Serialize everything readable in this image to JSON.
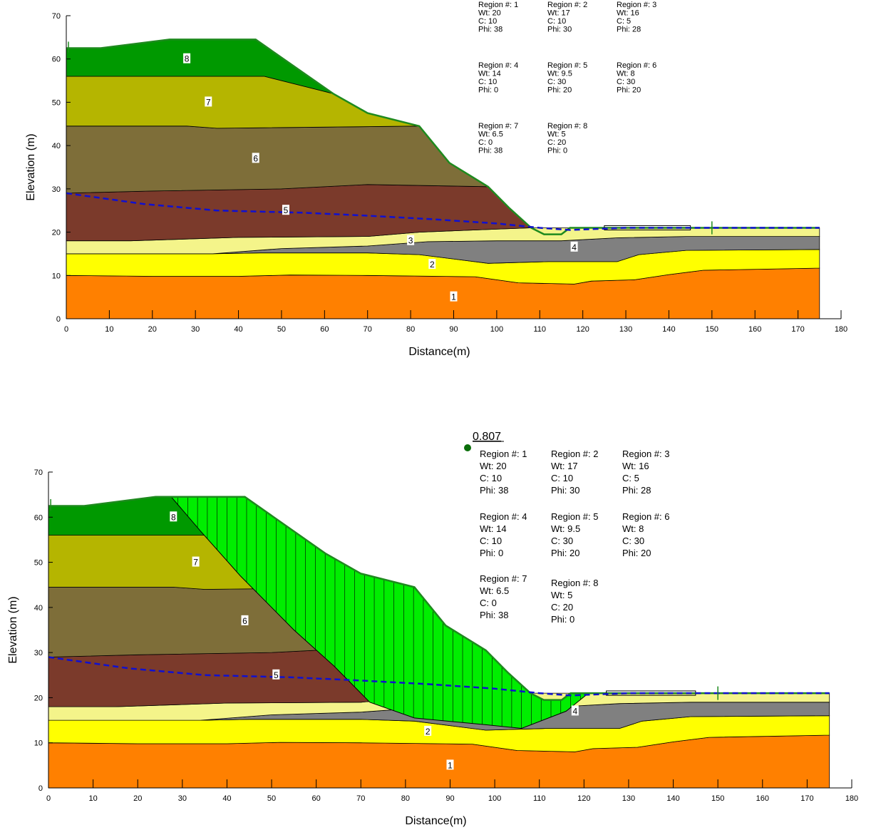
{
  "panels": [
    {
      "id": "top",
      "axes": {
        "xlabel": "Distance(m)",
        "ylabel": "Elevation (m)",
        "xlim": [
          0,
          180
        ],
        "ylim": [
          0,
          70
        ],
        "xticks": [
          0,
          10,
          20,
          30,
          40,
          50,
          60,
          70,
          80,
          90,
          100,
          110,
          120,
          130,
          140,
          150,
          160,
          170,
          180
        ],
        "yticks": [
          0,
          10,
          20,
          30,
          40,
          50,
          60,
          70
        ]
      },
      "region_labels": [
        {
          "text": "1",
          "x": 90,
          "y": 5
        },
        {
          "text": "2",
          "x": 85,
          "y": 12.5
        },
        {
          "text": "3",
          "x": 80,
          "y": 18
        },
        {
          "text": "4",
          "x": 118,
          "y": 16.5
        },
        {
          "text": "5",
          "x": 51,
          "y": 25
        },
        {
          "text": "6",
          "x": 44,
          "y": 37
        },
        {
          "text": "7",
          "x": 33,
          "y": 50
        },
        {
          "text": "8",
          "x": 28,
          "y": 60
        }
      ],
      "factor_of_safety": null
    },
    {
      "id": "bottom",
      "axes": {
        "xlabel": "Distance(m)",
        "ylabel": "Elevation (m)",
        "xlim": [
          0,
          180
        ],
        "ylim": [
          0,
          70
        ],
        "xticks": [
          0,
          10,
          20,
          30,
          40,
          50,
          60,
          70,
          80,
          90,
          100,
          110,
          120,
          130,
          140,
          150,
          160,
          170,
          180
        ],
        "yticks": [
          0,
          10,
          20,
          30,
          40,
          50,
          60,
          70
        ]
      },
      "region_labels": [
        {
          "text": "1",
          "x": 90,
          "y": 5
        },
        {
          "text": "2",
          "x": 85,
          "y": 12.5
        },
        {
          "text": "4",
          "x": 118,
          "y": 17
        },
        {
          "text": "5",
          "x": 51,
          "y": 25
        },
        {
          "text": "6",
          "x": 44,
          "y": 37
        },
        {
          "text": "7",
          "x": 33,
          "y": 50
        },
        {
          "text": "8",
          "x": 28,
          "y": 60
        }
      ],
      "factor_of_safety": "0.807"
    }
  ],
  "materials": [
    {
      "region": "Region  #: 1",
      "wt": "Wt: 20",
      "c": "C: 10",
      "phi": "Phi: 38"
    },
    {
      "region": "Region  #: 2",
      "wt": "Wt: 17",
      "c": "C: 10",
      "phi": "Phi: 30"
    },
    {
      "region": "Region  #: 3",
      "wt": "Wt: 16",
      "c": "C: 5",
      "phi": "Phi: 28"
    },
    {
      "region": "Region  #: 4",
      "wt": "Wt: 14",
      "c": "C: 10",
      "phi": "Phi: 0"
    },
    {
      "region": "Region  #: 5",
      "wt": "Wt: 9.5",
      "c": "C: 30",
      "phi": "Phi: 20"
    },
    {
      "region": "Region  #: 6",
      "wt": "Wt: 8",
      "c": "C: 30",
      "phi": "Phi: 20"
    },
    {
      "region": "Region  #: 7",
      "wt": "Wt: 6.5",
      "c": "C: 0",
      "phi": "Phi: 38"
    },
    {
      "region": "Region  #: 8",
      "wt": "Wt: 5",
      "c": "C: 20",
      "phi": "Phi: 0"
    }
  ],
  "geometry": {
    "surface": [
      [
        0,
        62.5
      ],
      [
        8,
        62.5
      ],
      [
        24,
        64.5
      ],
      [
        44,
        64.5
      ],
      [
        62,
        52
      ],
      [
        70,
        47.5
      ],
      [
        82,
        44.5
      ],
      [
        89,
        36
      ],
      [
        98,
        30.5
      ],
      [
        103,
        25.5
      ],
      [
        108,
        21
      ],
      [
        111,
        19.5
      ],
      [
        115,
        19.5
      ],
      [
        117,
        21
      ],
      [
        122,
        21
      ],
      [
        125,
        21
      ],
      [
        133,
        21
      ],
      [
        175,
        21
      ]
    ],
    "layers": [
      {
        "region": 1,
        "color": "#ff8000",
        "top": [
          [
            0,
            10
          ],
          [
            20,
            9.8
          ],
          [
            40,
            9.8
          ],
          [
            52,
            10.1
          ],
          [
            70,
            10
          ],
          [
            95,
            9.7
          ],
          [
            105,
            8.3
          ],
          [
            118,
            8
          ],
          [
            122,
            8.7
          ],
          [
            132,
            9
          ],
          [
            140,
            10.2
          ],
          [
            148,
            11.2
          ],
          [
            175,
            11.7
          ]
        ]
      },
      {
        "region": 2,
        "color": "#ffff00",
        "top": [
          [
            0,
            15
          ],
          [
            34,
            15
          ],
          [
            45,
            15.2
          ],
          [
            70,
            15.2
          ],
          [
            82,
            14.8
          ],
          [
            98,
            12.8
          ],
          [
            112,
            13.2
          ],
          [
            128,
            13.2
          ],
          [
            133,
            14.8
          ],
          [
            144,
            15.8
          ],
          [
            175,
            16
          ]
        ]
      },
      {
        "region": 4,
        "color": "#808080",
        "top": [
          [
            0,
            15
          ],
          [
            34,
            15
          ],
          [
            50,
            16.2
          ],
          [
            70,
            16.8
          ],
          [
            84,
            17.8
          ],
          [
            100,
            18
          ],
          [
            115,
            18
          ],
          [
            128,
            18.7
          ],
          [
            144,
            19
          ],
          [
            175,
            19
          ]
        ]
      },
      {
        "region": 3,
        "color": "#f4f48a",
        "top": [
          [
            0,
            18
          ],
          [
            15,
            18
          ],
          [
            40,
            18.8
          ],
          [
            70,
            19
          ],
          [
            82,
            20
          ],
          [
            95,
            20.5
          ],
          [
            108,
            21
          ],
          [
            175,
            21
          ]
        ]
      },
      {
        "region": 5,
        "color": "#7b3a2b",
        "top": [
          [
            0,
            29
          ],
          [
            20,
            29.5
          ],
          [
            50,
            30
          ],
          [
            70,
            31
          ],
          [
            98,
            30.5
          ],
          [
            103,
            25.5
          ],
          [
            108,
            21
          ],
          [
            0,
            21
          ]
        ]
      },
      {
        "region": 6,
        "color": "#7e6e39",
        "top": [
          [
            0,
            44.5
          ],
          [
            28,
            44.5
          ],
          [
            35,
            44
          ],
          [
            82,
            44.5
          ],
          [
            89,
            36
          ],
          [
            98,
            30.5
          ]
        ]
      },
      {
        "region": 7,
        "color": "#b5b500",
        "top": [
          [
            0,
            56
          ],
          [
            46,
            56
          ],
          [
            62,
            52
          ],
          [
            70,
            47.5
          ],
          [
            82,
            44.5
          ]
        ]
      },
      {
        "region": 8,
        "color": "#009900",
        "top": [
          [
            0,
            62.5
          ],
          [
            8,
            62.5
          ],
          [
            24,
            64.5
          ],
          [
            44,
            64.5
          ],
          [
            62,
            52
          ]
        ]
      }
    ],
    "water_table": [
      [
        0,
        29
      ],
      [
        18,
        26.5
      ],
      [
        35,
        25
      ],
      [
        55,
        24.5
      ],
      [
        70,
        23.8
      ],
      [
        85,
        23
      ],
      [
        100,
        22
      ],
      [
        110,
        21
      ],
      [
        117,
        20.5
      ],
      [
        130,
        21
      ],
      [
        175,
        21
      ]
    ],
    "slip_surface": [
      [
        27.5,
        64.5
      ],
      [
        34,
        57
      ],
      [
        43,
        47
      ],
      [
        55,
        35
      ],
      [
        64,
        27
      ],
      [
        72,
        19
      ],
      [
        82,
        15.5
      ],
      [
        98,
        14
      ],
      [
        106,
        13.2
      ],
      [
        116,
        17
      ],
      [
        121,
        21
      ]
    ]
  }
}
